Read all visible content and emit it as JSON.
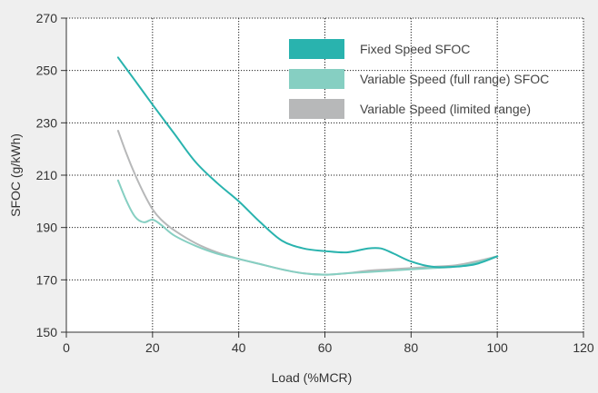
{
  "chart_data": {
    "type": "line",
    "xlabel": "Load (%MCR)",
    "ylabel": "SFOC (g/kWh)",
    "xlim": [
      0,
      120
    ],
    "ylim": [
      150,
      270
    ],
    "xticks": [
      0,
      20,
      40,
      60,
      80,
      100,
      120
    ],
    "yticks": [
      150,
      170,
      190,
      210,
      230,
      250,
      270
    ],
    "grid": true,
    "legend_position": "top-right",
    "series": [
      {
        "name": "Fixed Speed SFOC",
        "color": "#29b3ae",
        "x": [
          12,
          16,
          20,
          25,
          30,
          35,
          40,
          45,
          50,
          55,
          60,
          65,
          70,
          73,
          76,
          80,
          85,
          90,
          95,
          100
        ],
        "y": [
          255,
          246,
          237,
          226,
          215,
          207,
          200,
          192,
          185,
          182,
          181,
          180.5,
          182,
          182,
          180,
          177,
          175,
          175,
          176,
          179
        ]
      },
      {
        "name": "Variable Speed (full range) SFOC",
        "color": "#86cfc2",
        "x": [
          12,
          14,
          16,
          18,
          20,
          22,
          25,
          30,
          35,
          40,
          45,
          50,
          55,
          60,
          65,
          70,
          75,
          80,
          85,
          90,
          95,
          100
        ],
        "y": [
          208,
          200,
          194,
          192,
          193,
          191,
          187,
          183,
          180,
          178,
          176,
          174,
          172.5,
          172,
          172.5,
          173,
          173.5,
          174,
          174.5,
          175,
          176.5,
          179
        ]
      },
      {
        "name": "Variable Speed (limited range)",
        "color": "#b7b8b9",
        "x": [
          12,
          14,
          16,
          18,
          20,
          22,
          25,
          30,
          35,
          40,
          45,
          50,
          55,
          60,
          65,
          70,
          75,
          80,
          85,
          90,
          95,
          100
        ],
        "y": [
          227,
          218,
          210,
          203,
          197,
          193,
          189,
          184,
          180.5,
          178,
          176,
          174,
          172.5,
          172,
          172.5,
          173.5,
          174,
          174.5,
          175,
          175.5,
          177,
          179
        ]
      }
    ]
  }
}
